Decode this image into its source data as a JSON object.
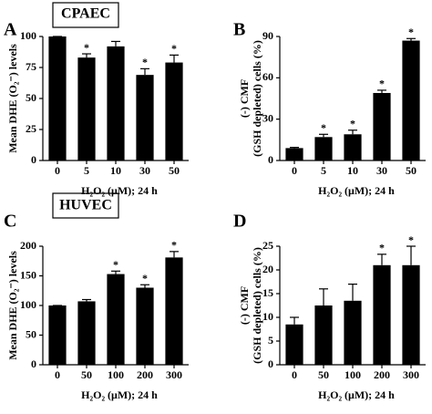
{
  "chart_data": [
    {
      "type": "bar",
      "panel_label": "A",
      "cell_label": "CPAEC",
      "y_label": "Mean DHE (O₂⁻) levels",
      "x_label": "H₂O₂ (μM); 24 h",
      "categories": [
        "0",
        "5",
        "10",
        "30",
        "50"
      ],
      "values": [
        100,
        83,
        92,
        69,
        79
      ],
      "errors": [
        0,
        3,
        4,
        5,
        6
      ],
      "markers": [
        null,
        "*",
        null,
        "*",
        "*"
      ],
      "color": "#000000",
      "ylim": [
        0,
        100
      ],
      "yticks": [
        0,
        25,
        50,
        75,
        100
      ]
    },
    {
      "type": "bar",
      "panel_label": "B",
      "y_label": [
        "(-) CMF",
        "(GSH depleted) cells (%)"
      ],
      "x_label": "H₂O₂ (μM); 24 h",
      "categories": [
        "0",
        "5",
        "10",
        "30",
        "50"
      ],
      "values": [
        9,
        17,
        19,
        49,
        87
      ],
      "errors": [
        0.5,
        2,
        3,
        2,
        1.5
      ],
      "markers": [
        null,
        "*",
        "*",
        "*",
        "*"
      ],
      "color": "#000000",
      "ylim": [
        0,
        90
      ],
      "yticks": [
        0,
        30,
        60,
        90
      ]
    },
    {
      "type": "bar",
      "panel_label": "C",
      "cell_label": "HUVEC",
      "y_label": "Mean DHE (O₂⁻) levels",
      "x_label": "H₂O₂ (μM); 24 h",
      "categories": [
        "0",
        "50",
        "100",
        "200",
        "300"
      ],
      "values": [
        100,
        107,
        153,
        130,
        181
      ],
      "errors": [
        0,
        3,
        5,
        5,
        10
      ],
      "markers": [
        null,
        null,
        "*",
        "*",
        "*"
      ],
      "color": "#000000",
      "ylim": [
        0,
        200
      ],
      "yticks": [
        0,
        50,
        100,
        150,
        200
      ]
    },
    {
      "type": "bar",
      "panel_label": "D",
      "y_label": [
        "(-) CMF",
        "(GSH depleted) cells (%)"
      ],
      "x_label": "H₂O₂ (μM); 24 h",
      "categories": [
        "0",
        "50",
        "100",
        "200",
        "300"
      ],
      "values": [
        8.5,
        12.5,
        13.5,
        21,
        21
      ],
      "errors": [
        1.5,
        3.5,
        3.5,
        2.3,
        4
      ],
      "markers": [
        null,
        null,
        null,
        "*",
        "*"
      ],
      "color": "#000000",
      "ylim": [
        0,
        25
      ],
      "yticks": [
        0,
        5,
        10,
        15,
        20,
        25
      ]
    }
  ]
}
